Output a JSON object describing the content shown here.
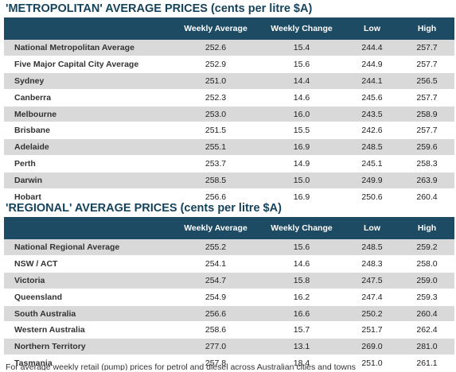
{
  "metropolitan": {
    "title": "'METROPOLITAN' AVERAGE PRICES (cents per litre $A)",
    "headers": [
      "",
      "Weekly Average",
      "Weekly Change",
      "Low",
      "High"
    ],
    "rows": [
      [
        "National Metropolitan Average",
        "252.6",
        "15.4",
        "244.4",
        "257.7"
      ],
      [
        "Five Major Capital City Average",
        "252.9",
        "15.6",
        "244.9",
        "257.7"
      ],
      [
        "Sydney",
        "251.0",
        "14.4",
        "244.1",
        "256.5"
      ],
      [
        "Canberra",
        "252.3",
        "14.6",
        "245.6",
        "257.7"
      ],
      [
        "Melbourne",
        "253.0",
        "16.0",
        "243.5",
        "258.9"
      ],
      [
        "Brisbane",
        "251.5",
        "15.5",
        "242.6",
        "257.7"
      ],
      [
        "Adelaide",
        "255.1",
        "16.9",
        "248.5",
        "259.6"
      ],
      [
        "Perth",
        "253.7",
        "14.9",
        "245.1",
        "258.3"
      ],
      [
        "Darwin",
        "258.5",
        "15.0",
        "249.9",
        "263.9"
      ],
      [
        "Hobart",
        "256.6",
        "16.9",
        "250.6",
        "260.4"
      ]
    ]
  },
  "regional": {
    "title": "'REGIONAL' AVERAGE PRICES (cents per litre $A)",
    "headers": [
      "",
      "Weekly Average",
      "Weekly Change",
      "Low",
      "High"
    ],
    "rows": [
      [
        "National Regional Average",
        "255.2",
        "15.6",
        "248.5",
        "259.2"
      ],
      [
        "NSW / ACT",
        "254.1",
        "14.6",
        "248.3",
        "258.0"
      ],
      [
        "Victoria",
        "254.7",
        "15.8",
        "247.5",
        "259.0"
      ],
      [
        "Queensland",
        "254.9",
        "16.2",
        "247.4",
        "259.3"
      ],
      [
        "South Australia",
        "256.6",
        "16.6",
        "250.2",
        "260.4"
      ],
      [
        "Western Australia",
        "258.6",
        "15.7",
        "251.7",
        "262.4"
      ],
      [
        "Northern Territory",
        "277.0",
        "13.1",
        "269.0",
        "281.0"
      ],
      [
        "Tasmania",
        "257.8",
        "18.4",
        "251.0",
        "261.1"
      ]
    ]
  },
  "footnote": "For average weekly retail (pump) prices for petrol and diesel across Australian cities and towns"
}
